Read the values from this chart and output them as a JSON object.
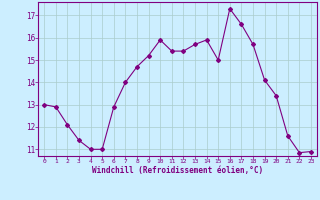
{
  "x": [
    0,
    1,
    2,
    3,
    4,
    5,
    6,
    7,
    8,
    9,
    10,
    11,
    12,
    13,
    14,
    15,
    16,
    17,
    18,
    19,
    20,
    21,
    22,
    23
  ],
  "y": [
    13.0,
    12.9,
    12.1,
    11.4,
    11.0,
    11.0,
    12.9,
    14.0,
    14.7,
    15.2,
    15.9,
    15.4,
    15.4,
    15.7,
    15.9,
    15.0,
    17.3,
    16.6,
    15.7,
    14.1,
    13.4,
    11.6,
    10.85,
    10.9
  ],
  "line_color": "#800080",
  "marker": "D",
  "marker_size": 2,
  "bg_color": "#cceeff",
  "grid_color": "#aacccc",
  "xlabel": "Windchill (Refroidissement éolien,°C)",
  "xlabel_color": "#800080",
  "tick_color": "#800080",
  "ylim": [
    10.7,
    17.6
  ],
  "yticks": [
    11,
    12,
    13,
    14,
    15,
    16,
    17
  ],
  "xlim": [
    -0.5,
    23.5
  ],
  "xticks": [
    0,
    1,
    2,
    3,
    4,
    5,
    6,
    7,
    8,
    9,
    10,
    11,
    12,
    13,
    14,
    15,
    16,
    17,
    18,
    19,
    20,
    21,
    22,
    23
  ]
}
